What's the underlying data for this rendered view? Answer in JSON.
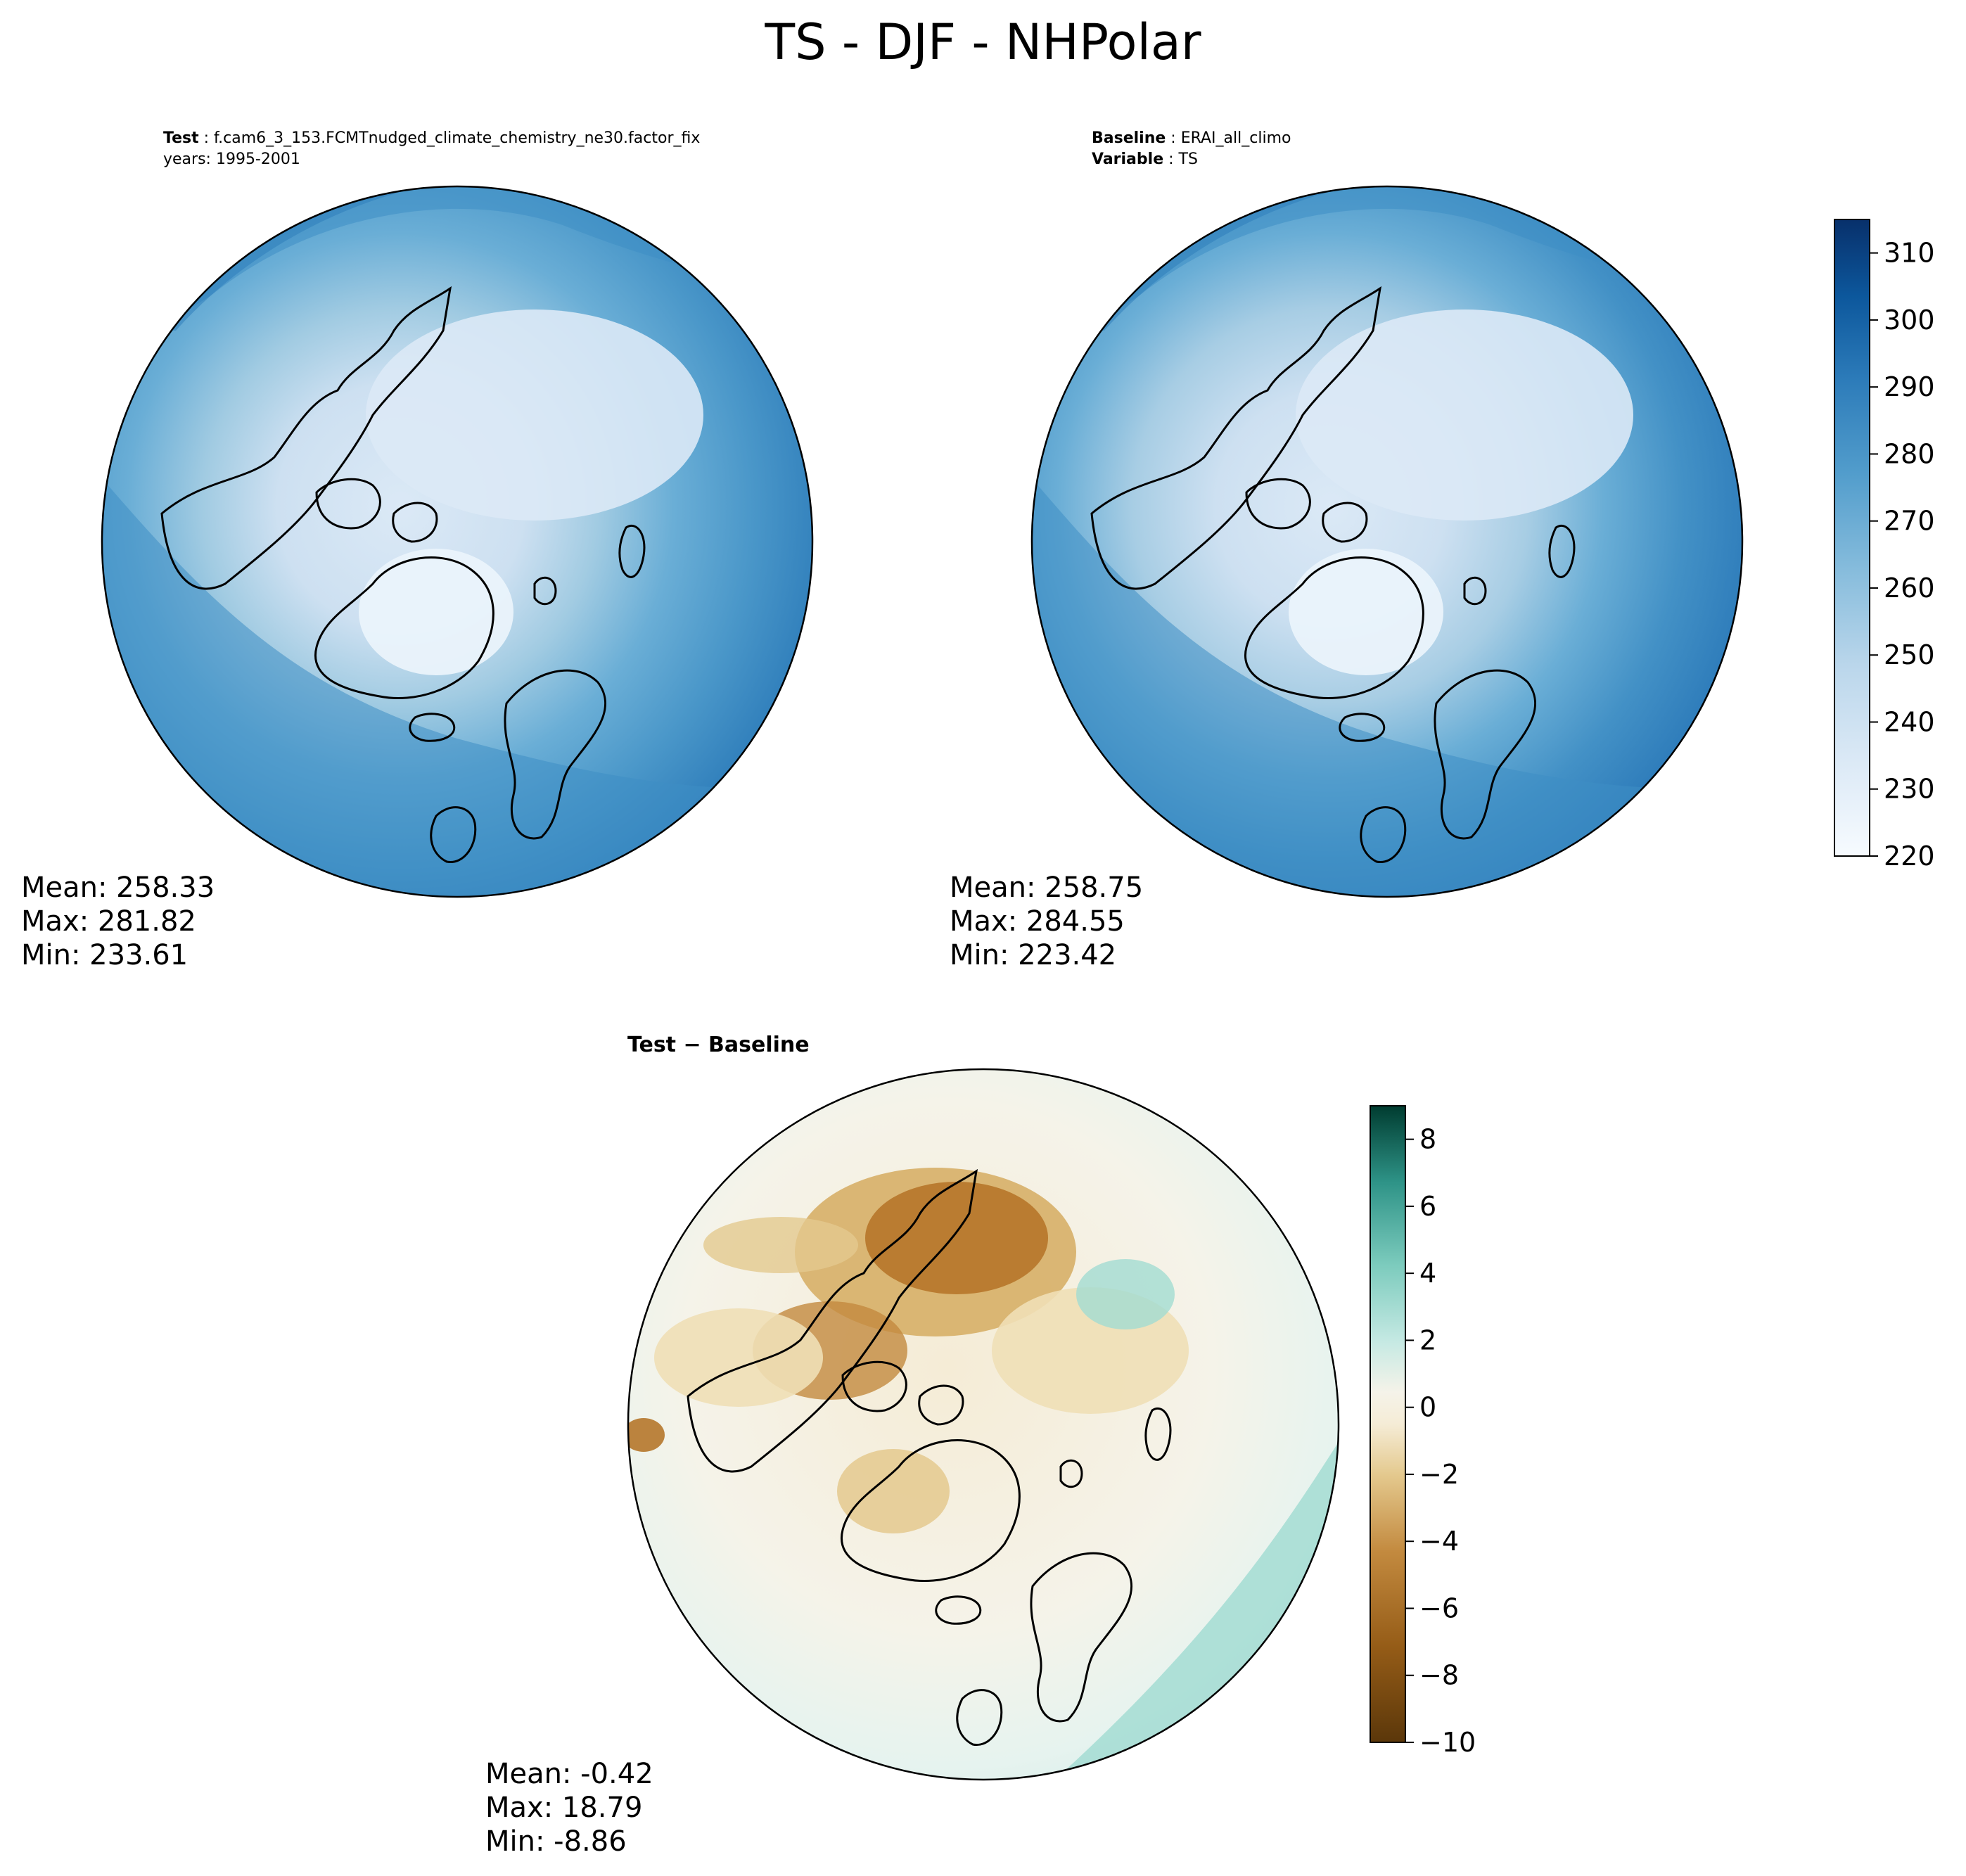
{
  "title": "TS - DJF - NHPolar",
  "chart_data": [
    {
      "type": "heatmap",
      "projection": "north polar stereographic",
      "header": {
        "line1_label": "Test",
        "line1_value": "f.cam6_3_153.FCMTnudged_climate_chemistry_ne30.factor_fix",
        "line2_text": "years: 1995-2001"
      },
      "stats": {
        "mean": "Mean: 258.33",
        "max": "Max: 281.82",
        "min": "Min: 233.61"
      },
      "colormap": "Blues"
    },
    {
      "type": "heatmap",
      "projection": "north polar stereographic",
      "header": {
        "line1_label": "Baseline",
        "line1_value": "ERAI_all_climo",
        "line2_label": "Variable",
        "line2_value": "TS"
      },
      "stats": {
        "mean": "Mean: 258.75",
        "max": "Max: 284.55",
        "min": "Min: 223.42"
      },
      "colormap": "Blues",
      "colorbar": {
        "range": [
          220,
          315
        ],
        "ticks": [
          220,
          230,
          240,
          250,
          260,
          270,
          280,
          290,
          300,
          310
        ],
        "tick_labels": [
          "220",
          "230",
          "240",
          "250",
          "260",
          "270",
          "280",
          "290",
          "300",
          "310"
        ],
        "colors": [
          "#f7fbff",
          "#eaf3fb",
          "#dbe9f6",
          "#cde0f1",
          "#bad6eb",
          "#a1cbe2",
          "#86bcdc",
          "#6aaed6",
          "#529dcc",
          "#3e8ec4",
          "#2c7bb9",
          "#1b69af",
          "#0c579c",
          "#08468b",
          "#08306b"
        ]
      }
    },
    {
      "type": "heatmap",
      "projection": "north polar stereographic",
      "header": {
        "title": "Test − Baseline"
      },
      "stats": {
        "mean": "Mean: -0.42",
        "max": "Max: 18.79",
        "min": "Min: -8.86"
      },
      "colormap": "BrBG",
      "colorbar": {
        "range": [
          -10,
          9
        ],
        "ticks": [
          -10,
          -8,
          -6,
          -4,
          -2,
          0,
          2,
          4,
          6,
          8
        ],
        "tick_labels": [
          "−10",
          "−8",
          "−6",
          "−4",
          "−2",
          "0",
          "2",
          "4",
          "6",
          "8"
        ],
        "colors": [
          "#5b370a",
          "#7a4810",
          "#955c17",
          "#b26e20",
          "#c38a3f",
          "#d5ab60",
          "#e4c98e",
          "#f0dfb6",
          "#f5ecd6",
          "#f5f3e9",
          "#e2f2ee",
          "#c5e9e3",
          "#a3dcd2",
          "#7ccbbd",
          "#50afa3",
          "#2e9387",
          "#10776c",
          "#02604f",
          "#003c30"
        ]
      }
    }
  ],
  "colors": {
    "land_outline": "#000000",
    "blues_ocean_dark": "#2a78b8",
    "blues_land_cold": "#dfeaf6"
  }
}
